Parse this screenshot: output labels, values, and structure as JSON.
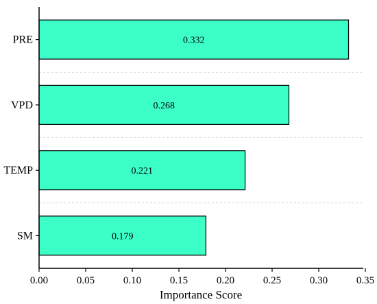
{
  "chart_data": {
    "type": "bar",
    "orientation": "horizontal",
    "categories": [
      "PRE",
      "VPD",
      "TEMP",
      "SM"
    ],
    "values": [
      0.332,
      0.268,
      0.221,
      0.179
    ],
    "data_labels": [
      "0.332",
      "0.268",
      "0.221",
      "0.179"
    ],
    "title": "",
    "xlabel": "Importance Score",
    "ylabel": "",
    "xlim": [
      0.0,
      0.35
    ],
    "x_ticks": [
      "0.00",
      "0.05",
      "0.10",
      "0.15",
      "0.20",
      "0.25",
      "0.30",
      "0.35"
    ],
    "grid": "dashed lines between categories",
    "bar_color": "#3cffc8",
    "bar_edge_color": "#000000"
  }
}
